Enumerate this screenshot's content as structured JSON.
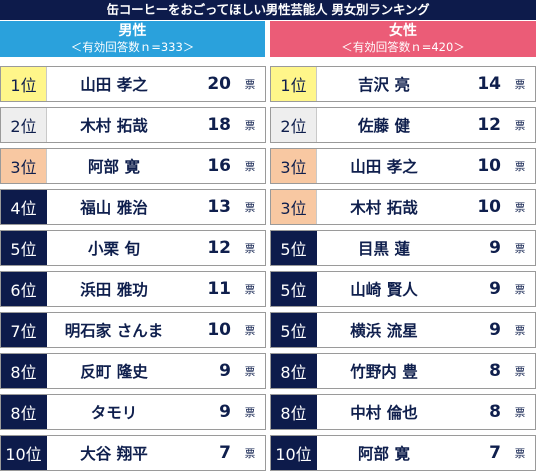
{
  "title": "缶コーヒーをおごってほしい男性芸能人 男女別ランキング",
  "vote_unit": "票",
  "colors": {
    "title_bg": "#0d1b4b",
    "male_header": "#2aa1dc",
    "female_header": "#eb5c77",
    "rank_gold": "#fff68a",
    "rank_silver": "#eeeeee",
    "rank_bronze": "#f8c8a2",
    "rank_default": "#0d1b4b"
  },
  "male": {
    "label": "男性",
    "sub": "＜有効回答数ｎ=333＞",
    "rows": [
      {
        "rank": "1位",
        "medal": "gold",
        "name": "山田 孝之",
        "votes": "20"
      },
      {
        "rank": "2位",
        "medal": "silver",
        "name": "木村 拓哉",
        "votes": "18"
      },
      {
        "rank": "3位",
        "medal": "bronze",
        "name": "阿部 寛",
        "votes": "16"
      },
      {
        "rank": "4位",
        "medal": "plain",
        "name": "福山 雅治",
        "votes": "13"
      },
      {
        "rank": "5位",
        "medal": "plain",
        "name": "小栗 旬",
        "votes": "12"
      },
      {
        "rank": "6位",
        "medal": "plain",
        "name": "浜田 雅功",
        "votes": "11"
      },
      {
        "rank": "7位",
        "medal": "plain",
        "name": "明石家 さんま",
        "votes": "10"
      },
      {
        "rank": "8位",
        "medal": "plain",
        "name": "反町 隆史",
        "votes": "9"
      },
      {
        "rank": "8位",
        "medal": "plain",
        "name": "タモリ",
        "votes": "9"
      },
      {
        "rank": "10位",
        "medal": "plain",
        "name": "大谷 翔平",
        "votes": "7"
      }
    ]
  },
  "female": {
    "label": "女性",
    "sub": "＜有効回答数ｎ=420＞",
    "rows": [
      {
        "rank": "1位",
        "medal": "gold",
        "name": "吉沢 亮",
        "votes": "14"
      },
      {
        "rank": "2位",
        "medal": "silver",
        "name": "佐藤 健",
        "votes": "12"
      },
      {
        "rank": "3位",
        "medal": "bronze",
        "name": "山田 孝之",
        "votes": "10"
      },
      {
        "rank": "3位",
        "medal": "bronze",
        "name": "木村 拓哉",
        "votes": "10"
      },
      {
        "rank": "5位",
        "medal": "plain",
        "name": "目黒 蓮",
        "votes": "9"
      },
      {
        "rank": "5位",
        "medal": "plain",
        "name": "山崎 賢人",
        "votes": "9"
      },
      {
        "rank": "5位",
        "medal": "plain",
        "name": "横浜 流星",
        "votes": "9"
      },
      {
        "rank": "8位",
        "medal": "plain",
        "name": "竹野内 豊",
        "votes": "8"
      },
      {
        "rank": "8位",
        "medal": "plain",
        "name": "中村 倫也",
        "votes": "8"
      },
      {
        "rank": "10位",
        "medal": "plain",
        "name": "阿部 寛",
        "votes": "7"
      }
    ]
  }
}
